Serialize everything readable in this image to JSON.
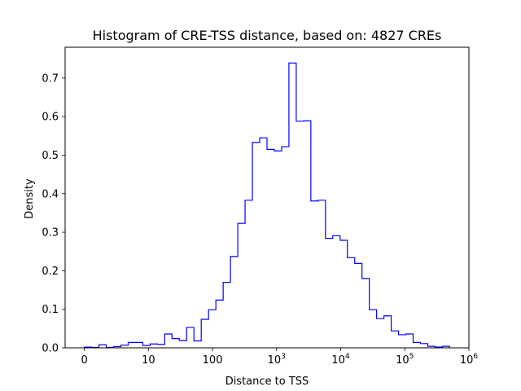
{
  "chart_data": {
    "type": "histogram",
    "title": "Histogram of CRE-TSS distance, based on: 4827 CREs",
    "xlabel": "Distance to TSS",
    "ylabel": "Density",
    "x_scale": "symlog",
    "xlim": [
      -0.3,
      6.0
    ],
    "ylim": [
      0,
      0.78
    ],
    "grid": false,
    "line_color": "#0000ff",
    "x_ticks": [
      {
        "base": "0",
        "exp": ""
      },
      {
        "base": "10",
        "exp": ""
      },
      {
        "base": "100",
        "exp": ""
      },
      {
        "base": "10",
        "exp": "3"
      },
      {
        "base": "10",
        "exp": "4"
      },
      {
        "base": "10",
        "exp": "5"
      },
      {
        "base": "10",
        "exp": "6"
      }
    ],
    "y_ticks": [
      "0.0",
      "0.1",
      "0.2",
      "0.3",
      "0.4",
      "0.5",
      "0.6",
      "0.7"
    ],
    "y_tick_values": [
      0,
      0.1,
      0.2,
      0.3,
      0.4,
      0.5,
      0.6,
      0.7
    ],
    "bins_log10": [
      0,
      0.114,
      0.228,
      0.342,
      0.456,
      0.57,
      0.684,
      0.798,
      0.912,
      1.026,
      1.14,
      1.254,
      1.368,
      1.482,
      1.596,
      1.71,
      1.824,
      1.938,
      2.052,
      2.166,
      2.28,
      2.394,
      2.508,
      2.622,
      2.736,
      2.85,
      2.964,
      3.078,
      3.192,
      3.306,
      3.42,
      3.534,
      3.648,
      3.762,
      3.876,
      3.99,
      4.104,
      4.218,
      4.332,
      4.446,
      4.56,
      4.674,
      4.788,
      4.902,
      5.016,
      5.13,
      5.244,
      5.358,
      5.472,
      5.586,
      5.7
    ],
    "densities": [
      0.002,
      0.001,
      0.008,
      0.001,
      0.003,
      0.007,
      0.014,
      0.014,
      0.006,
      0.01,
      0.009,
      0.036,
      0.024,
      0.019,
      0.053,
      0.018,
      0.074,
      0.099,
      0.124,
      0.17,
      0.237,
      0.323,
      0.383,
      0.533,
      0.545,
      0.515,
      0.511,
      0.522,
      0.739,
      0.588,
      0.589,
      0.381,
      0.383,
      0.284,
      0.291,
      0.279,
      0.234,
      0.219,
      0.18,
      0.099,
      0.076,
      0.083,
      0.044,
      0.034,
      0.036,
      0.014,
      0.011,
      0.004,
      0.002,
      0.004
    ]
  }
}
